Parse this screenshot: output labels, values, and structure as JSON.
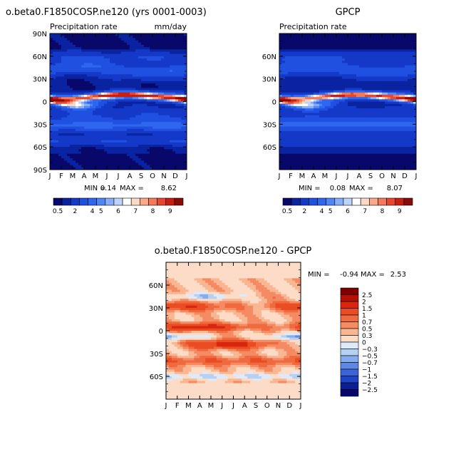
{
  "chart_data": [
    {
      "type": "heatmap",
      "title": "o.beta0.F1850COSP.ne120 (yrs 0001-0003)",
      "subtitle_left": "Precipitation rate",
      "subtitle_right": "mm/day",
      "x_tick_labels": [
        "J",
        "F",
        "M",
        "A",
        "M",
        "J",
        "J",
        "A",
        "S",
        "O",
        "N",
        "D",
        "J"
      ],
      "y_tick_labels": [
        "90N",
        "60N",
        "30N",
        "0",
        "30S",
        "60S",
        "90S"
      ],
      "y_ticks": [
        90,
        60,
        30,
        0,
        -30,
        -60,
        -90
      ],
      "ylim": [
        -90,
        90
      ],
      "min_label": "MIN =",
      "min_value": "0.14",
      "max_label": "MAX =",
      "max_value": "8.62",
      "colorbar_labels": [
        "0.5",
        "2",
        "4",
        "5",
        "6",
        "7",
        "8",
        "9"
      ]
    },
    {
      "type": "heatmap",
      "title": "GPCP",
      "subtitle_left": "Precipitation rate",
      "x_tick_labels": [
        "J",
        "F",
        "M",
        "A",
        "M",
        "J",
        "J",
        "A",
        "S",
        "O",
        "N",
        "D",
        "J"
      ],
      "y_tick_labels": [
        "60N",
        "30N",
        "0",
        "30S",
        "60S"
      ],
      "y_ticks": [
        60,
        30,
        0,
        -30,
        -60
      ],
      "ylim": [
        -90,
        90
      ],
      "min_label": "MIN =",
      "min_value": "0.08",
      "max_label": "MAX =",
      "max_value": "8.07",
      "colorbar_labels": [
        "0.5",
        "2",
        "4",
        "5",
        "6",
        "7",
        "8",
        "9"
      ]
    },
    {
      "type": "heatmap",
      "title": "o.beta0.F1850COSP.ne120 - GPCP",
      "x_tick_labels": [
        "J",
        "F",
        "M",
        "A",
        "M",
        "J",
        "J",
        "A",
        "S",
        "O",
        "N",
        "D",
        "J"
      ],
      "y_tick_labels": [
        "60N",
        "30N",
        "0",
        "30S",
        "60S"
      ],
      "y_ticks": [
        60,
        30,
        0,
        -30,
        -60
      ],
      "ylim": [
        -90,
        90
      ],
      "min_label": "MIN =",
      "min_value": "-0.94",
      "max_label": "MAX =",
      "max_value": "2.53",
      "colorbar_labels": [
        "2.5",
        "2",
        "1.5",
        "1",
        "0.7",
        "0.5",
        "0.3",
        "0",
        "-0.3",
        "-0.5",
        "-0.7",
        "-1",
        "-1.5",
        "-2",
        "-2.5"
      ]
    }
  ],
  "colors": {
    "precip_scale": [
      "#08086b",
      "#0a23a0",
      "#1438c8",
      "#2050e0",
      "#2f66f0",
      "#4f86f5",
      "#87aef7",
      "#bed3fa",
      "#ffffff",
      "#fcd9c6",
      "#f9a98a",
      "#f4795a",
      "#e8472e",
      "#c81e12",
      "#8a0a08"
    ],
    "diff_scale": [
      "#800000",
      "#b41006",
      "#d8260f",
      "#ea4c23",
      "#f06a3f",
      "#f48b63",
      "#f8b692",
      "#fcdcc6",
      "#ddeaf9",
      "#b5d0f3",
      "#87acec",
      "#5d88e4",
      "#3b64da",
      "#2045c4",
      "#0a1f94",
      "#06066e"
    ]
  }
}
